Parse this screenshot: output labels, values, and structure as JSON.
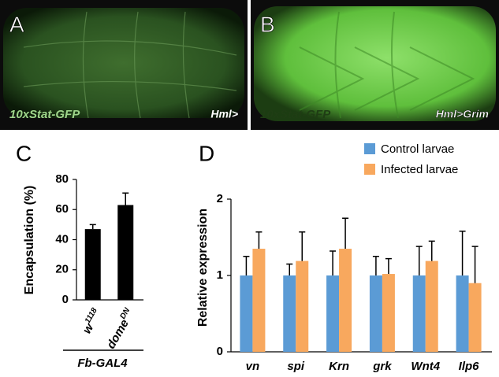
{
  "panels": [
    {
      "letter": "A",
      "label_left": "10xStat-GFP",
      "label_right": "Hml>"
    },
    {
      "letter": "B",
      "label_left": "10xStat-GFP",
      "label_right": "Hml>Grim"
    }
  ],
  "chart_data": [
    {
      "type": "bar",
      "letter": "C",
      "ylabel": "Encapsulation (%)",
      "categories": [
        "w",
        "dome"
      ],
      "category_superscripts": [
        "1118",
        "DN"
      ],
      "values": [
        47,
        63
      ],
      "errors": [
        3,
        8
      ],
      "color": "#000000",
      "ylim": [
        0,
        80
      ],
      "yticks": [
        0,
        20,
        40,
        60,
        80
      ],
      "group_label": "Fb-GAL4"
    },
    {
      "type": "bar",
      "letter": "D",
      "ylabel": "Relative expression",
      "categories": [
        "vn",
        "spi",
        "Krn",
        "grk",
        "Wnt4",
        "Ilp6"
      ],
      "series": [
        {
          "name": "Control larvae",
          "color": "#5b9bd5",
          "values": [
            1,
            1,
            1,
            1,
            1,
            1
          ],
          "errors": [
            0.25,
            0.15,
            0.32,
            0.25,
            0.38,
            0.58
          ]
        },
        {
          "name": "Infected larvae",
          "color": "#f8a85e",
          "values": [
            1.35,
            1.19,
            1.35,
            1.02,
            1.19,
            0.9
          ],
          "errors": [
            0.22,
            0.38,
            0.4,
            0.2,
            0.26,
            0.48
          ]
        }
      ],
      "ylim": [
        0,
        2
      ],
      "yticks": [
        0,
        1,
        2
      ],
      "legend": "upper right"
    }
  ]
}
